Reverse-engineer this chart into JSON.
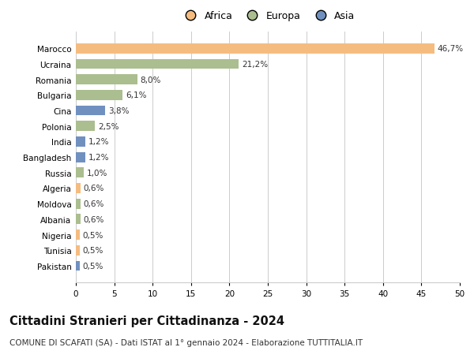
{
  "countries": [
    "Marocco",
    "Ucraina",
    "Romania",
    "Bulgaria",
    "Cina",
    "Polonia",
    "India",
    "Bangladesh",
    "Russia",
    "Algeria",
    "Moldova",
    "Albania",
    "Nigeria",
    "Tunisia",
    "Pakistan"
  ],
  "values": [
    46.7,
    21.2,
    8.0,
    6.1,
    3.8,
    2.5,
    1.2,
    1.2,
    1.0,
    0.6,
    0.6,
    0.6,
    0.5,
    0.5,
    0.5
  ],
  "labels": [
    "46,7%",
    "21,2%",
    "8,0%",
    "6,1%",
    "3,8%",
    "2,5%",
    "1,2%",
    "1,2%",
    "1,0%",
    "0,6%",
    "0,6%",
    "0,6%",
    "0,5%",
    "0,5%",
    "0,5%"
  ],
  "continents": [
    "Africa",
    "Europa",
    "Europa",
    "Europa",
    "Asia",
    "Europa",
    "Asia",
    "Asia",
    "Europa",
    "Africa",
    "Europa",
    "Europa",
    "Africa",
    "Africa",
    "Asia"
  ],
  "colors": {
    "Africa": "#F5BC80",
    "Europa": "#ABBE8F",
    "Asia": "#7090C0"
  },
  "title": "Cittadini Stranieri per Cittadinanza - 2024",
  "subtitle": "COMUNE DI SCAFATI (SA) - Dati ISTAT al 1° gennaio 2024 - Elaborazione TUTTITALIA.IT",
  "xlim": [
    0,
    50
  ],
  "xticks": [
    0,
    5,
    10,
    15,
    20,
    25,
    30,
    35,
    40,
    45,
    50
  ],
  "background_color": "#ffffff",
  "grid_color": "#cccccc",
  "bar_height": 0.65,
  "title_fontsize": 10.5,
  "subtitle_fontsize": 7.5,
  "label_fontsize": 7.5,
  "tick_fontsize": 7.5,
  "legend_fontsize": 9
}
